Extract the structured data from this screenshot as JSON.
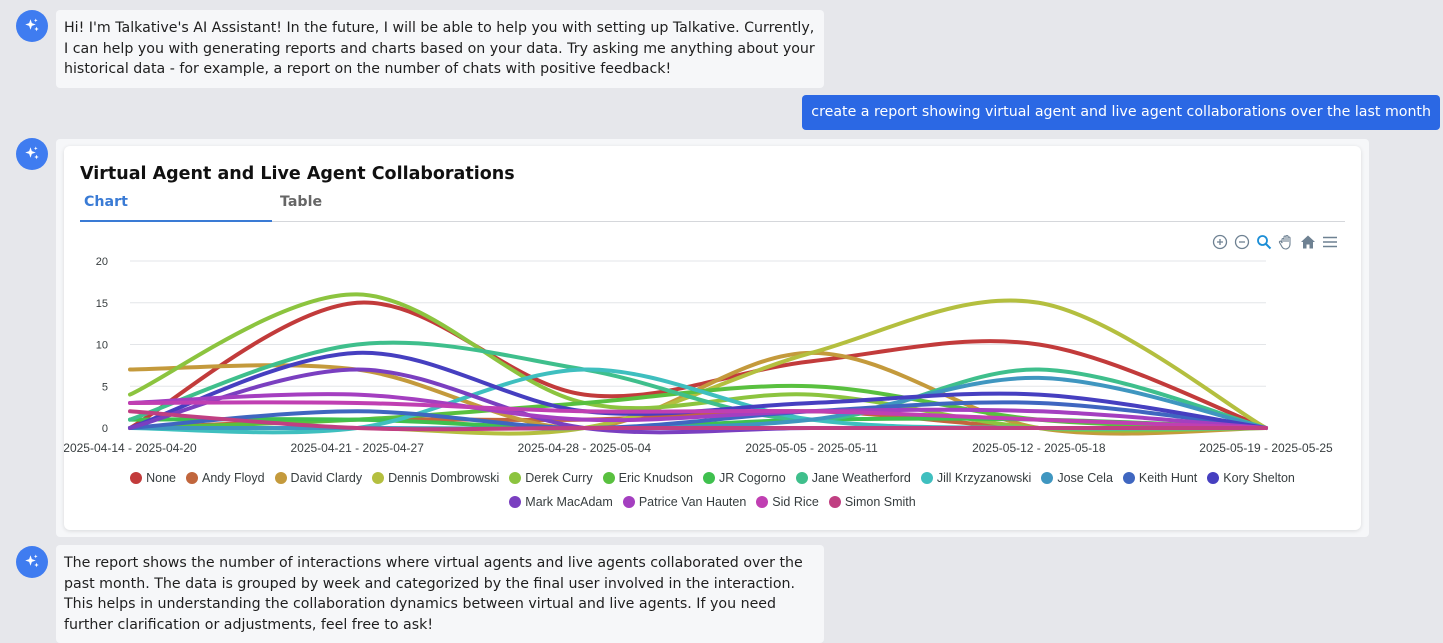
{
  "messages": {
    "assistant_intro": "Hi! I'm Talkative's AI Assistant! In the future, I will be able to help you with setting up Talkative. Currently, I can help you with generating reports and charts based on your data. Try asking me anything about your historical data - for example, a report on the number of chats with positive feedback!",
    "user_request": "create a report showing virtual agent and live agent collaborations over the last month",
    "assistant_summary": "The report shows the number of interactions where virtual agents and live agents collaborated over the past month. The data is grouped by week and categorized by the final user involved in the interaction. This helps in understanding the collaboration dynamics between virtual and live agents. If you need further clarification or adjustments, feel free to ask!"
  },
  "report": {
    "title": "Virtual Agent and Live Agent Collaborations",
    "tabs": {
      "chart": "Chart",
      "table": "Table"
    },
    "toolbar_icons": [
      "zoom-in-icon",
      "zoom-out-icon",
      "magnifier-icon",
      "pan-hand-icon",
      "home-icon",
      "menu-icon"
    ]
  },
  "colors": {
    "avatar": "#3f7cf0",
    "user_bubble": "#2b68e4",
    "tab_active": "#3a7bd5"
  },
  "chart_data": {
    "type": "line",
    "curve": "smooth",
    "categories": [
      "2025-04-14 - 2025-04-20",
      "2025-04-21 - 2025-04-27",
      "2025-04-28 - 2025-05-04",
      "2025-05-05 - 2025-05-11",
      "2025-05-12 - 2025-05-18",
      "2025-05-19 - 2025-05-25"
    ],
    "ylim": [
      0,
      20
    ],
    "yticks": [
      0,
      5,
      10,
      15,
      20
    ],
    "grid": true,
    "legend_position": "bottom",
    "series": [
      {
        "name": "None",
        "color": "#c23b3b",
        "values": [
          0,
          15,
          4,
          8,
          10,
          0
        ]
      },
      {
        "name": "Andy Floyd",
        "color": "#c1663d",
        "values": [
          0,
          1,
          1,
          2,
          0,
          0
        ]
      },
      {
        "name": "David Clardy",
        "color": "#c49a3c",
        "values": [
          7,
          7,
          0,
          9,
          0,
          0
        ]
      },
      {
        "name": "Dennis Dombrowski",
        "color": "#b4bf3f",
        "values": [
          0,
          0,
          0,
          9,
          15,
          0
        ]
      },
      {
        "name": "Derek Curry",
        "color": "#8cc43f",
        "values": [
          4,
          16,
          3,
          4,
          0,
          0
        ]
      },
      {
        "name": "Eric Knudson",
        "color": "#59c03f",
        "values": [
          0,
          1,
          3,
          5,
          1,
          0
        ]
      },
      {
        "name": "JR Cogorno",
        "color": "#3fc04e",
        "values": [
          1,
          1,
          0,
          1,
          1,
          0
        ]
      },
      {
        "name": "Jane Weatherford",
        "color": "#3fbf8c",
        "values": [
          1,
          10,
          7,
          1,
          7,
          0
        ]
      },
      {
        "name": "Jill Krzyzanowski",
        "color": "#3fbfbf",
        "values": [
          0,
          0,
          7,
          1,
          0,
          0
        ]
      },
      {
        "name": "Jose Cela",
        "color": "#3f96c0",
        "values": [
          0,
          0,
          0,
          1,
          6,
          0
        ]
      },
      {
        "name": "Keith Hunt",
        "color": "#3f66c0",
        "values": [
          0,
          2,
          0,
          2,
          3,
          0
        ]
      },
      {
        "name": "Kory Shelton",
        "color": "#463fc0",
        "values": [
          0,
          9,
          2,
          3,
          4,
          0
        ]
      },
      {
        "name": "Mark MacAdam",
        "color": "#7a3fc0",
        "values": [
          0,
          7,
          0,
          0,
          0,
          0
        ]
      },
      {
        "name": "Patrice Van Hauten",
        "color": "#a43fc0",
        "values": [
          3,
          4,
          1,
          2,
          2,
          0
        ]
      },
      {
        "name": "Sid Rice",
        "color": "#c03fb2",
        "values": [
          3,
          3,
          2,
          2,
          1,
          0
        ]
      },
      {
        "name": "Simon Smith",
        "color": "#c03f82",
        "values": [
          2,
          0,
          0,
          0,
          0,
          0
        ]
      }
    ]
  }
}
